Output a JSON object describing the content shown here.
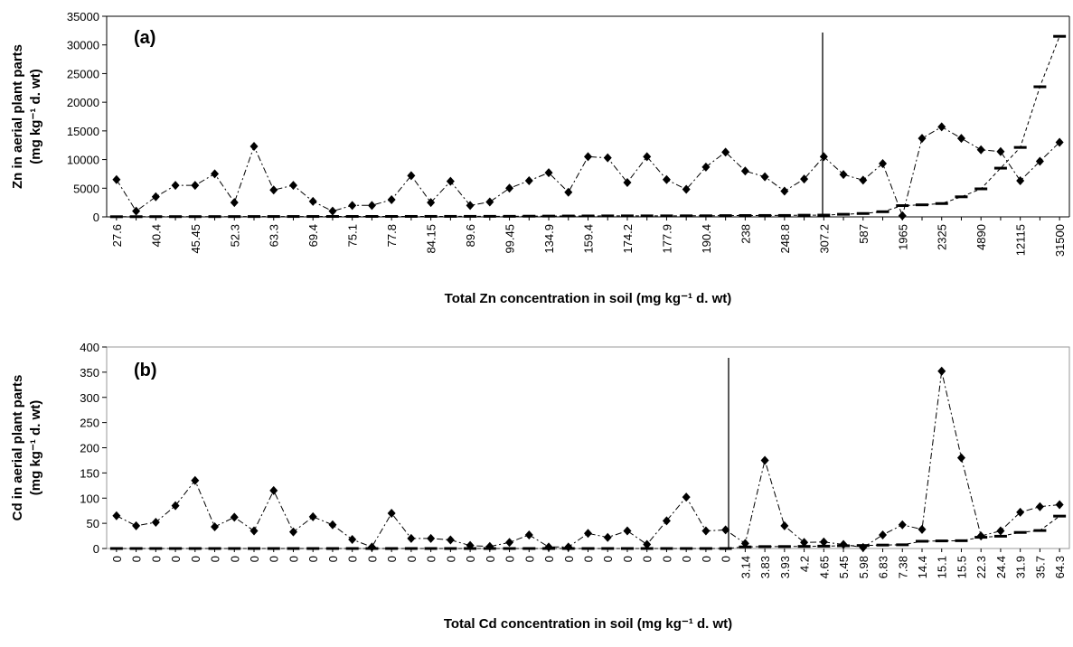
{
  "chart_data": [
    {
      "type": "line",
      "title": "(a)",
      "x_label": "Total Zn concentration in soil (mg kg⁻¹ d. wt)",
      "y_label": [
        "Zn in aerial plant parts",
        "(mg kg⁻¹ d. wt)"
      ],
      "categories": [
        "27.6",
        null,
        "40.4",
        null,
        "45.45",
        null,
        "52.3",
        null,
        "63.3",
        null,
        "69.4",
        null,
        "75.1",
        null,
        "77.8",
        null,
        "84.15",
        null,
        "89.6",
        null,
        "99.45",
        null,
        "134.9",
        null,
        "159.4",
        null,
        "174.2",
        null,
        "177.9",
        null,
        "190.4",
        null,
        "238",
        null,
        "248.8",
        null,
        "307.2",
        null,
        "587",
        null,
        "1965",
        null,
        "2325",
        null,
        "4890",
        null,
        "12115",
        null,
        "31500"
      ],
      "series": [
        {
          "color": "#000000",
          "marker": "diamond",
          "values": [
            6500,
            1000,
            3500,
            5500,
            5500,
            7500,
            2500,
            12300,
            4700,
            5500,
            2700,
            1000,
            2000,
            2000,
            3000,
            7200,
            2500,
            6200,
            2000,
            2600,
            5000,
            6300,
            7700,
            4300,
            10500,
            10300,
            6000,
            10500,
            6500,
            4800,
            8700,
            11300,
            8000,
            7000,
            4500,
            6600,
            10500,
            7400,
            6400,
            9300,
            200,
            13700,
            15700,
            13700,
            11700,
            11400,
            6300,
            9700,
            13000
          ]
        },
        {
          "color": "#000000",
          "marker": "dash",
          "values": [
            27.6,
            35,
            40.4,
            43,
            45.45,
            50,
            52.3,
            60,
            63.3,
            67,
            69.4,
            73,
            75.1,
            77,
            77.8,
            82,
            84.15,
            87,
            89.6,
            95,
            99.45,
            120,
            134.9,
            150,
            159.4,
            170,
            174.2,
            176,
            177.9,
            185,
            190.4,
            220,
            238,
            245,
            248.8,
            290,
            307.2,
            450,
            587,
            900,
            1965,
            2100,
            2325,
            3500,
            4890,
            8500,
            12115,
            22700,
            31500
          ]
        }
      ],
      "ylim": [
        0,
        35000
      ],
      "yticks": [
        0,
        5000,
        10000,
        15000,
        20000,
        25000,
        30000,
        35000
      ]
    },
    {
      "type": "line",
      "title": "(b)",
      "x_label": "Total Cd concentration in soil (mg kg⁻¹ d. wt)",
      "y_label": [
        "Cd in aerial plant parts",
        "(mg kg⁻¹ d. wt)"
      ],
      "categories": [
        "0",
        "0",
        "0",
        "0",
        "0",
        "0",
        "0",
        "0",
        "0",
        "0",
        "0",
        "0",
        "0",
        "0",
        "0",
        "0",
        "0",
        "0",
        "0",
        "0",
        "0",
        "0",
        "0",
        "0",
        "0",
        "0",
        "0",
        "0",
        "0",
        "0",
        "0",
        "0",
        "3.14",
        "3.83",
        "3.93",
        "4.2",
        "4.65",
        "5.45",
        "5.98",
        "6.83",
        "7.38",
        "14.4",
        "15.1",
        "15.5",
        "22.3",
        "24.4",
        "31.9",
        "35.7",
        "64.3"
      ],
      "series": [
        {
          "color": "#000000",
          "marker": "diamond",
          "values": [
            65,
            45,
            52,
            85,
            135,
            43,
            62,
            35,
            115,
            33,
            63,
            47,
            18,
            3,
            70,
            20,
            20,
            17,
            6,
            4,
            12,
            27,
            3,
            3,
            30,
            22,
            35,
            8,
            55,
            102,
            35,
            37,
            10,
            175,
            45,
            12,
            13,
            8,
            2,
            27,
            47,
            38,
            352,
            180,
            25,
            35,
            72,
            83,
            87
          ]
        },
        {
          "color": "#000000",
          "marker": "dash",
          "values": [
            0,
            0,
            0,
            0,
            0,
            0,
            0,
            0,
            0,
            0,
            0,
            0,
            0,
            0,
            0,
            0,
            0,
            0,
            0,
            0,
            0,
            0,
            0,
            0,
            0,
            0,
            0,
            0,
            0,
            0,
            0,
            0,
            3.14,
            3.83,
            3.93,
            4.2,
            4.65,
            5.45,
            5.98,
            6.83,
            7.38,
            14.4,
            15.1,
            15.5,
            22.3,
            24.4,
            31.9,
            35.7,
            64.3
          ]
        }
      ],
      "ylim": [
        0,
        400
      ],
      "yticks": [
        0,
        50,
        100,
        150,
        200,
        250,
        300,
        350,
        400
      ],
      "frame_color": "#999999"
    }
  ]
}
